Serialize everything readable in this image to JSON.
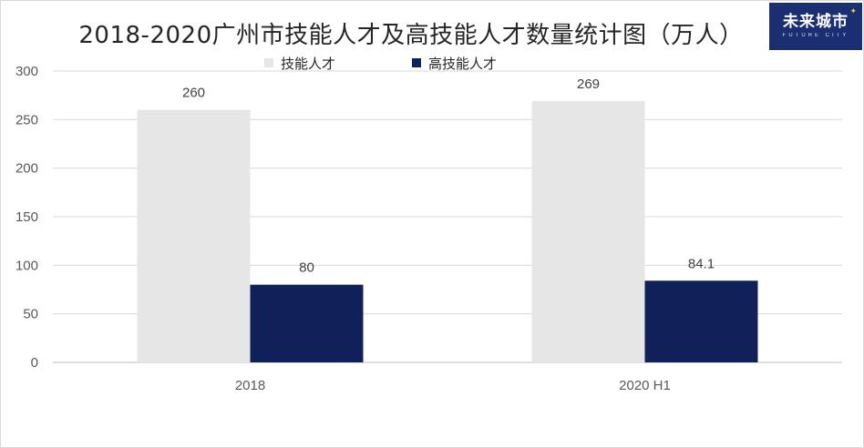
{
  "logo": {
    "main": "未来城市",
    "sub": "FUTURE CITY"
  },
  "chart_data": {
    "type": "bar",
    "title": "2018-2020广州市技能人才及高技能人才数量统计图（万人）",
    "categories": [
      "2018",
      "2020 H1"
    ],
    "series": [
      {
        "name": "技能人才",
        "values": [
          260,
          269
        ],
        "color": "#e7e6e6"
      },
      {
        "name": "高技能人才",
        "values": [
          80,
          84.1
        ],
        "color": "#0f2158"
      }
    ],
    "data_labels": [
      [
        "260",
        "269"
      ],
      [
        "80",
        "84.1"
      ]
    ],
    "ylim": [
      0,
      300
    ],
    "yticks": [
      0,
      50,
      100,
      150,
      200,
      250,
      300
    ],
    "grid": true,
    "legend_position": "top"
  }
}
